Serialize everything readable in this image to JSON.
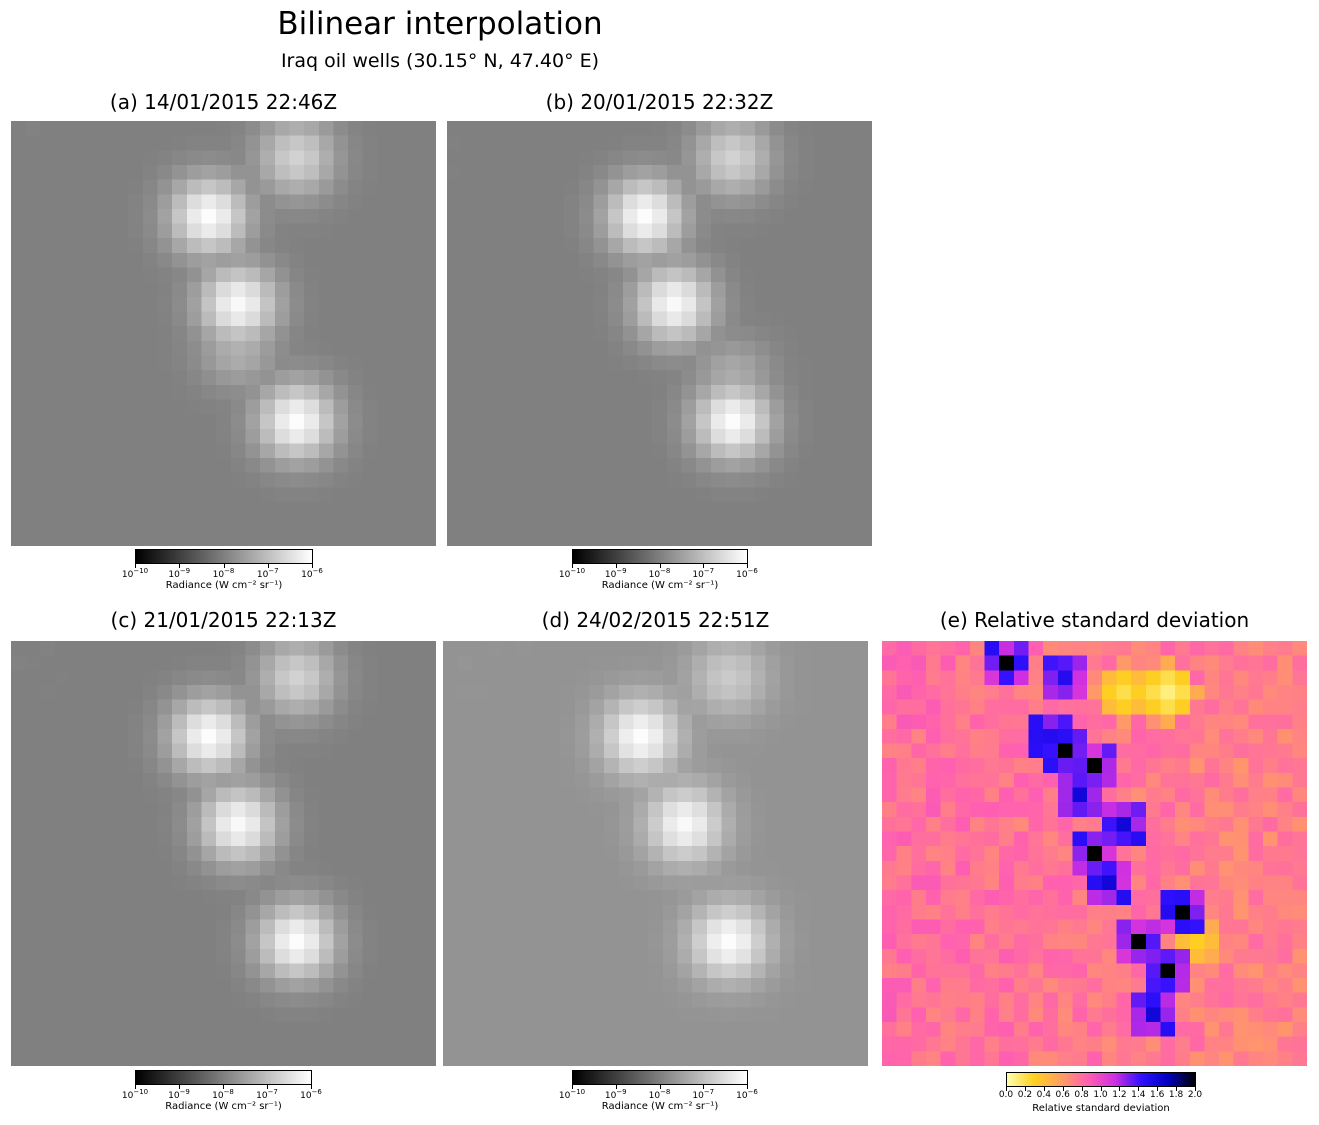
{
  "header": {
    "title": "Bilinear interpolation",
    "subtitle": "Iraq oil wells (30.15° N, 47.40° E)"
  },
  "panels": [
    {
      "id": "a",
      "title": "(a) 14/01/2015 22:46Z"
    },
    {
      "id": "b",
      "title": "(b) 20/01/2015 22:32Z"
    },
    {
      "id": "c",
      "title": "(c) 21/01/2015 22:13Z"
    },
    {
      "id": "d",
      "title": "(d) 24/02/2015 22:51Z"
    },
    {
      "id": "e",
      "title": "(e) Relative standard deviation"
    }
  ],
  "colorbars": {
    "radiance": {
      "label": "Radiance (W cm⁻² sr⁻¹)",
      "ticks": [
        {
          "base": "10",
          "exp": "−10"
        },
        {
          "base": "10",
          "exp": "−9"
        },
        {
          "base": "10",
          "exp": "−8"
        },
        {
          "base": "10",
          "exp": "−7"
        },
        {
          "base": "10",
          "exp": "−6"
        }
      ],
      "scale": "log",
      "range": [
        1e-10,
        1e-06
      ],
      "colors": [
        "#000000",
        "#ffffff"
      ]
    },
    "rsd": {
      "label": "Relative standard deviation",
      "ticks": [
        "0.0",
        "0.2",
        "0.4",
        "0.6",
        "0.8",
        "1.0",
        "1.2",
        "1.4",
        "1.6",
        "1.8",
        "2.0"
      ],
      "range": [
        0.0,
        2.0
      ],
      "colors": [
        "#ffffb0",
        "#ffd020",
        "#ff9f60",
        "#ff60b0",
        "#d030e0",
        "#3010ff",
        "#0000c0",
        "#000000"
      ]
    }
  },
  "chart_data": [
    {
      "type": "heatmap",
      "title": "(a) 14/01/2015 22:46Z",
      "grid": [
        29,
        29
      ],
      "value": "radiance",
      "scale": "log",
      "colorbar_range": [
        1e-10,
        1e-06
      ],
      "background_level": 1e-08,
      "hotspots": [
        {
          "row": 6,
          "col": 13,
          "value": 9e-07
        },
        {
          "row": 12,
          "col": 15,
          "value": 8e-07
        },
        {
          "row": 20,
          "col": 19,
          "value": 9e-07
        },
        {
          "row": 2,
          "col": 19,
          "value": 2e-07
        },
        {
          "row": 15,
          "col": 15,
          "value": 6e-08
        }
      ]
    },
    {
      "type": "heatmap",
      "title": "(b) 20/01/2015 22:32Z",
      "grid": [
        29,
        29
      ],
      "value": "radiance",
      "scale": "log",
      "colorbar_range": [
        1e-10,
        1e-06
      ],
      "background_level": 1e-08,
      "hotspots": [
        {
          "row": 6,
          "col": 13,
          "value": 9e-07
        },
        {
          "row": 12,
          "col": 15,
          "value": 8e-07
        },
        {
          "row": 20,
          "col": 19,
          "value": 9e-07
        },
        {
          "row": 2,
          "col": 19,
          "value": 2e-07
        },
        {
          "row": 17,
          "col": 19,
          "value": 5e-08
        }
      ]
    },
    {
      "type": "heatmap",
      "title": "(c) 21/01/2015 22:13Z",
      "grid": [
        29,
        29
      ],
      "value": "radiance",
      "scale": "log",
      "colorbar_range": [
        1e-10,
        1e-06
      ],
      "background_level": 1e-08,
      "hotspots": [
        {
          "row": 6,
          "col": 13,
          "value": 9e-07
        },
        {
          "row": 12,
          "col": 15,
          "value": 8e-07
        },
        {
          "row": 20,
          "col": 19,
          "value": 9e-07
        },
        {
          "row": 2,
          "col": 19,
          "value": 2e-07
        }
      ]
    },
    {
      "type": "heatmap",
      "title": "(d) 24/02/2015 22:51Z",
      "grid": [
        29,
        29
      ],
      "value": "radiance",
      "scale": "log",
      "colorbar_range": [
        1e-10,
        1e-06
      ],
      "background_level": 2e-08,
      "hotspots": [
        {
          "row": 6,
          "col": 13,
          "value": 9e-07
        },
        {
          "row": 12,
          "col": 16,
          "value": 8e-07
        },
        {
          "row": 20,
          "col": 19,
          "value": 9e-07
        },
        {
          "row": 2,
          "col": 19,
          "value": 1.5e-07
        }
      ]
    },
    {
      "type": "heatmap",
      "title": "(e) Relative standard deviation",
      "grid": [
        29,
        29
      ],
      "value": "relative standard deviation",
      "colorbar_range": [
        0.0,
        2.0
      ],
      "typical_value": 0.7,
      "high_value_cells": [
        {
          "row": 1,
          "col": 8,
          "value": 2.0
        },
        {
          "row": 2,
          "col": 12,
          "value": 1.5
        },
        {
          "row": 6,
          "col": 11,
          "value": 1.5
        },
        {
          "row": 7,
          "col": 12,
          "value": 2.0
        },
        {
          "row": 8,
          "col": 14,
          "value": 2.0
        },
        {
          "row": 10,
          "col": 13,
          "value": 1.6
        },
        {
          "row": 12,
          "col": 16,
          "value": 1.6
        },
        {
          "row": 14,
          "col": 14,
          "value": 2.0
        },
        {
          "row": 16,
          "col": 15,
          "value": 1.6
        },
        {
          "row": 18,
          "col": 20,
          "value": 2.0
        },
        {
          "row": 20,
          "col": 17,
          "value": 2.0
        },
        {
          "row": 22,
          "col": 19,
          "value": 2.0
        },
        {
          "row": 25,
          "col": 18,
          "value": 1.6
        }
      ],
      "low_value_cells": [
        {
          "row": 3,
          "col": 16,
          "value": 0.2
        },
        {
          "row": 3,
          "col": 19,
          "value": 0.1
        },
        {
          "row": 20,
          "col": 21,
          "value": 0.3
        }
      ]
    }
  ]
}
